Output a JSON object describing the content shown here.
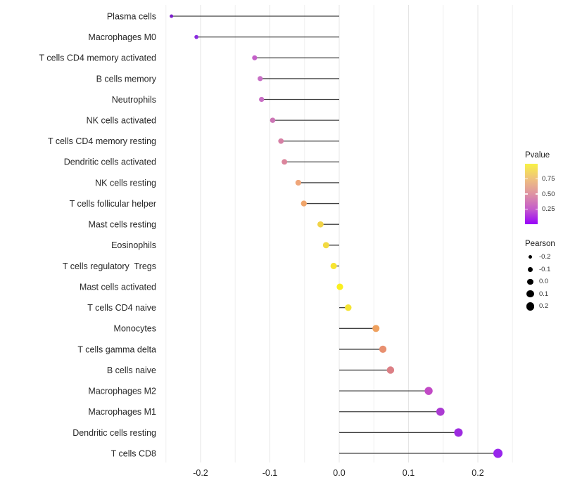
{
  "chart_data": {
    "type": "scatter",
    "subtype": "horizontal-lollipop",
    "title": "",
    "xlabel": "",
    "ylabel": "",
    "xlim": [
      -0.253,
      0.253
    ],
    "x_tick_values": [
      -0.2,
      -0.1,
      0.0,
      0.1,
      0.2
    ],
    "x_tick_labels": [
      "-0.2",
      "-0.1",
      "0.0",
      "0.1",
      "0.2"
    ],
    "grid": "vertical major every 0.1 and minor every 0.05, light gray, no panel border",
    "rows": [
      {
        "label": "Plasma cells",
        "pearson": -0.242,
        "pvalue": 0.02,
        "color": "#7B1FC9"
      },
      {
        "label": "Macrophages M0",
        "pearson": -0.206,
        "pvalue": 0.05,
        "color": "#8B2BE0"
      },
      {
        "label": "T cells CD4 memory activated",
        "pearson": -0.122,
        "pvalue": 0.3,
        "color": "#C460C8"
      },
      {
        "label": "B cells memory",
        "pearson": -0.114,
        "pvalue": 0.33,
        "color": "#C86FC6"
      },
      {
        "label": "Neutrophils",
        "pearson": -0.112,
        "pvalue": 0.32,
        "color": "#C96FC5"
      },
      {
        "label": "NK cells activated",
        "pearson": -0.096,
        "pvalue": 0.38,
        "color": "#CC75B5"
      },
      {
        "label": "T cells CD4 memory resting",
        "pearson": -0.084,
        "pvalue": 0.43,
        "color": "#D680A5"
      },
      {
        "label": "Dendritic cells activated",
        "pearson": -0.079,
        "pvalue": 0.46,
        "color": "#DB859C"
      },
      {
        "label": "NK cells resting",
        "pearson": -0.059,
        "pvalue": 0.62,
        "color": "#EFA67A"
      },
      {
        "label": "T cells follicular helper",
        "pearson": -0.051,
        "pvalue": 0.6,
        "color": "#F0A56B"
      },
      {
        "label": "Mast cells resting",
        "pearson": -0.027,
        "pvalue": 0.8,
        "color": "#F1D348"
      },
      {
        "label": "Eosinophils",
        "pearson": -0.019,
        "pvalue": 0.84,
        "color": "#F2DA41"
      },
      {
        "label": "T cells regulatory  Tregs",
        "pearson": -0.008,
        "pvalue": 0.89,
        "color": "#F7E430"
      },
      {
        "label": "Mast cells activated",
        "pearson": 0.001,
        "pvalue": 0.95,
        "color": "#FAEF1F"
      },
      {
        "label": "T cells CD4 naive",
        "pearson": 0.013,
        "pvalue": 0.89,
        "color": "#F5E432"
      },
      {
        "label": "Monocytes",
        "pearson": 0.053,
        "pvalue": 0.58,
        "color": "#EFA15F"
      },
      {
        "label": "T cells gamma delta",
        "pearson": 0.063,
        "pvalue": 0.5,
        "color": "#E89070"
      },
      {
        "label": "B cells naive",
        "pearson": 0.074,
        "pvalue": 0.43,
        "color": "#DC7F85"
      },
      {
        "label": "Macrophages M2",
        "pearson": 0.129,
        "pvalue": 0.19,
        "color": "#C24AC6"
      },
      {
        "label": "Macrophages M1",
        "pearson": 0.146,
        "pvalue": 0.12,
        "color": "#AB3BD2"
      },
      {
        "label": "Dendritic cells resting",
        "pearson": 0.172,
        "pvalue": 0.06,
        "color": "#9D2BE0"
      },
      {
        "label": "T cells CD8",
        "pearson": 0.229,
        "pvalue": 0.02,
        "color": "#9826EC"
      }
    ],
    "legends": {
      "pvalue": {
        "title": "Pvalue",
        "range": [
          0,
          1
        ],
        "tick_values": [
          0.75,
          0.5,
          0.25
        ],
        "tick_labels": [
          "0.75",
          "0.50",
          "0.25"
        ],
        "gradient_stops": [
          {
            "at": 0.0,
            "color": "#9802FA"
          },
          {
            "at": 0.25,
            "color": "#C55CCB"
          },
          {
            "at": 0.5,
            "color": "#DE93A3"
          },
          {
            "at": 0.75,
            "color": "#EFC17E"
          },
          {
            "at": 1.0,
            "color": "#F8F245"
          }
        ]
      },
      "pearson": {
        "title": "Pearson",
        "dot_color": "#000000",
        "items": [
          {
            "label": "-0.2",
            "value": -0.2
          },
          {
            "label": "-0.1",
            "value": -0.1
          },
          {
            "label": "0.0",
            "value": 0.0
          },
          {
            "label": "0.1",
            "value": 0.1
          },
          {
            "label": "0.2",
            "value": 0.2
          }
        ]
      }
    }
  },
  "style": {
    "background": "#FFFFFF",
    "grid_major_color": "#E5E5E5",
    "grid_minor_color": "#F0F0F0",
    "stem_color": "#404040",
    "axis_text_color": "#262626",
    "legend_text_color": "#333333"
  }
}
